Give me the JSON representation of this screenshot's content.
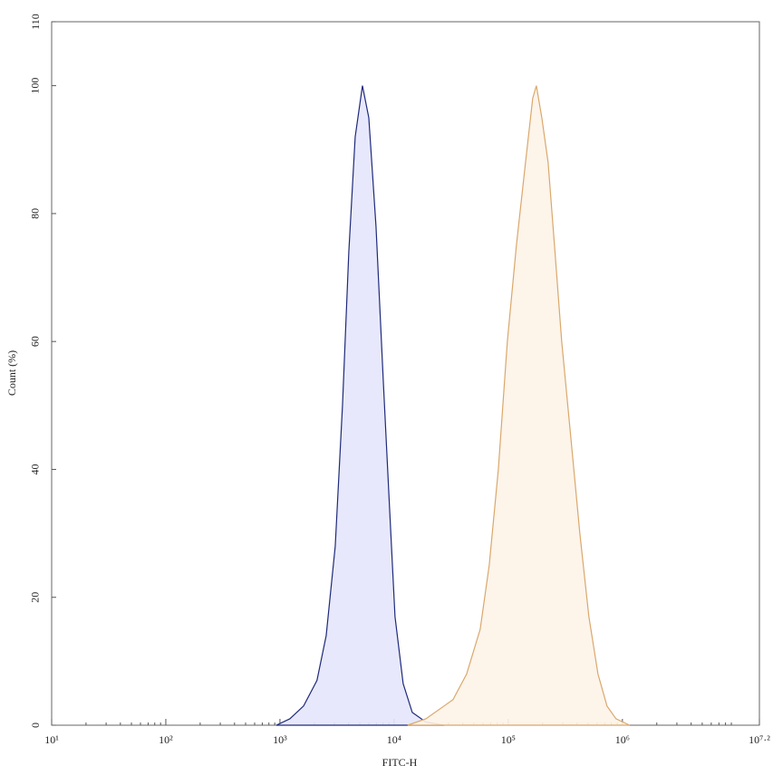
{
  "chart_data": {
    "type": "area",
    "xlabel": "FITC-H",
    "ylabel": "Count (%)",
    "xscale": "log",
    "xlim": [
      10,
      15848932
    ],
    "ylim": [
      0,
      110
    ],
    "xticks": [
      {
        "value": 10,
        "label": "10¹"
      },
      {
        "value": 100,
        "label": "10²"
      },
      {
        "value": 1000,
        "label": "10³"
      },
      {
        "value": 10000,
        "label": "10⁴"
      },
      {
        "value": 100000,
        "label": "10⁵"
      },
      {
        "value": 1000000,
        "label": "10⁶"
      },
      {
        "value": 15848932,
        "label": "10⁷·²"
      }
    ],
    "yticks": [
      0,
      20,
      40,
      60,
      80,
      100,
      110
    ],
    "series": [
      {
        "color": "#1f2a7a",
        "fill": "#e4e6fb",
        "x": [
          930,
          1220,
          1610,
          2110,
          2540,
          3050,
          3530,
          4010,
          4560,
          5280,
          6000,
          6940,
          8030,
          9120,
          10180,
          12000,
          14420,
          18970,
          27350
        ],
        "values": [
          0,
          1,
          3,
          7,
          14,
          28,
          50,
          74,
          92,
          100,
          95,
          78,
          54,
          34,
          17,
          6.5,
          2,
          0.5,
          0
        ]
      },
      {
        "color": "#d9a86c",
        "fill": "#fdf3e8",
        "x": [
          13150,
          18970,
          27350,
          32810,
          43150,
          56750,
          68080,
          81850,
          98160,
          117800,
          141600,
          163700,
          176200,
          196700,
          223400,
          254100,
          293800,
          353200,
          423600,
          508200,
          610900,
          732800,
          879000,
          1156000
        ],
        "values": [
          0,
          1,
          3,
          4,
          8,
          15,
          25,
          40,
          60,
          75,
          88,
          98,
          100,
          95,
          88,
          75,
          60,
          45,
          30,
          17,
          8,
          3,
          1,
          0
        ]
      }
    ]
  }
}
